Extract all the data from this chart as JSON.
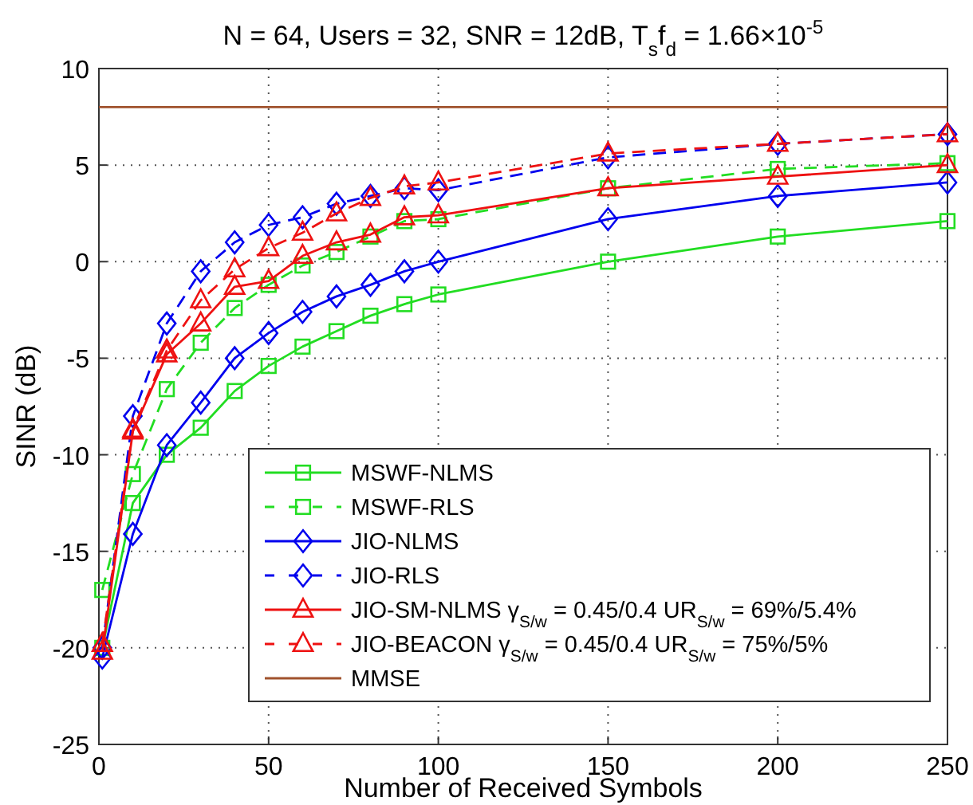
{
  "chart_data": {
    "type": "line",
    "title": "N = 64, Users = 32, SNR = 12dB, T$_{s}$f$_{d}$ = 1.66×10$^{-5}$",
    "xlabel": "Number of Received Symbols",
    "ylabel": "SINR (dB)",
    "x": [
      1,
      10,
      20,
      30,
      40,
      50,
      60,
      70,
      80,
      90,
      100,
      150,
      200,
      250
    ],
    "series": [
      {
        "name": "MSWF-NLMS",
        "color": "#22dd22",
        "marker": "square",
        "line_style": "solid",
        "values": [
          -20,
          -12.5,
          -10,
          -8.6,
          -6.7,
          -5.4,
          -4.4,
          -3.6,
          -2.8,
          -2.2,
          -1.7,
          0,
          1.3,
          2.1
        ]
      },
      {
        "name": "MSWF-RLS",
        "color": "#22dd22",
        "marker": "square",
        "line_style": "dashed",
        "values": [
          -17,
          -11,
          -6.6,
          -4.2,
          -2.4,
          -1.2,
          -0.2,
          0.5,
          1.3,
          2.1,
          2.2,
          3.8,
          4.8,
          5.1
        ]
      },
      {
        "name": "JIO-NLMS",
        "color": "#0000ee",
        "marker": "diamond",
        "line_style": "solid",
        "values": [
          -20.5,
          -14.1,
          -9.5,
          -7.3,
          -5,
          -3.7,
          -2.6,
          -1.8,
          -1.2,
          -0.5,
          0,
          2.2,
          3.4,
          4.1
        ]
      },
      {
        "name": "JIO-RLS",
        "color": "#0000ee",
        "marker": "diamond",
        "line_style": "dashed",
        "values": [
          -20,
          -8,
          -3.2,
          -0.5,
          1,
          1.9,
          2.3,
          3,
          3.4,
          3.8,
          3.7,
          5.4,
          6.1,
          6.6
        ]
      },
      {
        "name": "JIO-SM-NLMS γ$_{S/w}$ = 0.45/0.4 UR$_{S/w}$ = 69%/5.4%",
        "color": "#ee1111",
        "marker": "triangle",
        "line_style": "solid",
        "values": [
          -20.2,
          -8.8,
          -4.8,
          -3.2,
          -1.3,
          -1,
          0.3,
          1,
          1.4,
          2.3,
          2.4,
          3.8,
          4.4,
          5
        ]
      },
      {
        "name": "JIO-BEACON γ$_{S/w}$ = 0.45/0.4 UR$_{S/w}$ = 75%/5%",
        "color": "#ee1111",
        "marker": "triangle",
        "line_style": "dashed",
        "values": [
          -19.8,
          -8.7,
          -4.6,
          -2,
          -0.4,
          0.7,
          1.5,
          2.5,
          3.3,
          3.9,
          4.1,
          5.6,
          6.1,
          6.6
        ]
      },
      {
        "name": "MMSE",
        "color": "#a0522d",
        "marker": "none",
        "line_style": "solid",
        "x": [
          0,
          250
        ],
        "values": [
          8,
          8
        ]
      }
    ],
    "xlim": [
      0,
      250
    ],
    "xticks": [
      0,
      50,
      100,
      150,
      200,
      250
    ],
    "ylim": [
      -25,
      10
    ],
    "yticks": [
      -25,
      -20,
      -15,
      -10,
      -5,
      0,
      5,
      10
    ],
    "grid": true,
    "legend": "bottom right"
  }
}
